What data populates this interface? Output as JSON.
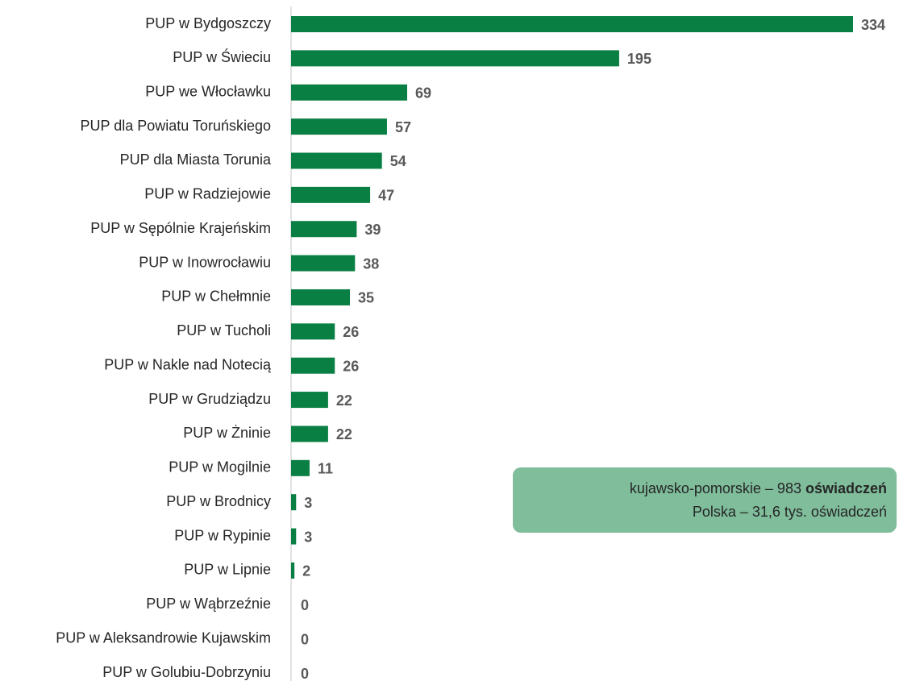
{
  "chart_data": {
    "type": "bar",
    "orientation": "horizontal",
    "categories": [
      "PUP w Bydgoszczy",
      "PUP w Świeciu",
      "PUP we Włocławku",
      "PUP dla Powiatu Toruńskiego",
      "PUP dla Miasta Torunia",
      "PUP w Radziejowie",
      "PUP w Sępólnie Krajeńskim",
      "PUP w Inowrocławiu",
      "PUP w Chełmnie",
      "PUP w Tucholi",
      "PUP w Nakle nad Notecią",
      "PUP w Grudziądzu",
      "PUP w Żninie",
      "PUP w Mogilnie",
      "PUP w Brodnicy",
      "PUP w Rypinie",
      "PUP w Lipnie",
      "PUP w Wąbrzeźnie",
      "PUP w Aleksandrowie Kujawskim",
      "PUP w Golubiu-Dobrzyniu"
    ],
    "values": [
      334,
      195,
      69,
      57,
      54,
      47,
      39,
      38,
      35,
      26,
      26,
      22,
      22,
      11,
      3,
      3,
      2,
      0,
      0,
      0
    ],
    "color": "#0a7f43",
    "annotation": [
      "kujawsko-pomorskie – 983",
      "oświadczeń",
      "Polska – 31,6 tys. oświadczeń"
    ]
  }
}
